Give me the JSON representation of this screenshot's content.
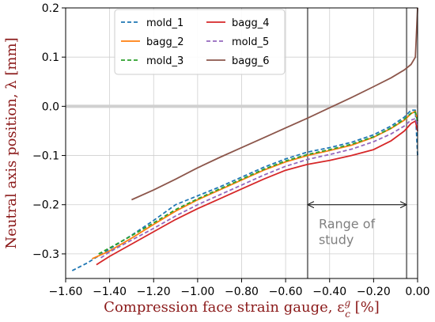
{
  "chart_data": {
    "type": "line",
    "xlabel": "Compression face strain gauge, ε",
    "xlabel_sup": "g",
    "xlabel_sub": "c",
    "xlabel_unit": "[%]",
    "ylabel": "Neutral axis position, λ [mm]",
    "xlim": [
      -1.6,
      0.0
    ],
    "ylim": [
      -0.35,
      0.2
    ],
    "xticks": [
      -1.6,
      -1.4,
      -1.2,
      -1.0,
      -0.8,
      -0.6,
      -0.4,
      -0.2,
      0.0
    ],
    "xtick_labels": [
      "−1.60",
      "−1.40",
      "−1.20",
      "−1.00",
      "−0.80",
      "−0.60",
      "−0.40",
      "−0.20",
      "0.00"
    ],
    "yticks": [
      -0.3,
      -0.2,
      -0.1,
      0.0,
      0.1,
      0.2
    ],
    "ytick_labels": [
      "−0.3",
      "−0.2",
      "−0.1",
      "0.0",
      "0.1",
      "0.2"
    ],
    "grid": true,
    "legend_placement": "top-center, 2 columns",
    "reference_hline": {
      "y": 0.0,
      "color": "#d0d0d0"
    },
    "study_range": {
      "x_start": -0.5,
      "x_end": -0.05,
      "arrow_y": -0.2,
      "label_lines": [
        "Range of",
        "study"
      ],
      "color": "#808080"
    },
    "series": [
      {
        "name": "mold_1",
        "color": "#1f77b4",
        "dashed": true,
        "points": [
          [
            -1.57,
            -0.334
          ],
          [
            -1.5,
            -0.318
          ],
          [
            -1.4,
            -0.29
          ],
          [
            -1.3,
            -0.262
          ],
          [
            -1.2,
            -0.232
          ],
          [
            -1.1,
            -0.2
          ],
          [
            -1.0,
            -0.182
          ],
          [
            -0.9,
            -0.164
          ],
          [
            -0.8,
            -0.144
          ],
          [
            -0.7,
            -0.124
          ],
          [
            -0.6,
            -0.107
          ],
          [
            -0.5,
            -0.093
          ],
          [
            -0.4,
            -0.084
          ],
          [
            -0.3,
            -0.073
          ],
          [
            -0.2,
            -0.058
          ],
          [
            -0.12,
            -0.04
          ],
          [
            -0.06,
            -0.022
          ],
          [
            -0.03,
            -0.008
          ],
          [
            -0.01,
            -0.008
          ],
          [
            0.0,
            -0.1
          ]
        ]
      },
      {
        "name": "bagg_2",
        "color": "#ff7f0e",
        "dashed": false,
        "points": [
          [
            -1.48,
            -0.31
          ],
          [
            -1.4,
            -0.294
          ],
          [
            -1.3,
            -0.268
          ],
          [
            -1.2,
            -0.24
          ],
          [
            -1.1,
            -0.213
          ],
          [
            -1.0,
            -0.19
          ],
          [
            -0.9,
            -0.17
          ],
          [
            -0.8,
            -0.15
          ],
          [
            -0.7,
            -0.13
          ],
          [
            -0.6,
            -0.113
          ],
          [
            -0.5,
            -0.1
          ],
          [
            -0.4,
            -0.09
          ],
          [
            -0.3,
            -0.079
          ],
          [
            -0.2,
            -0.063
          ],
          [
            -0.12,
            -0.045
          ],
          [
            -0.06,
            -0.028
          ],
          [
            -0.03,
            -0.015
          ],
          [
            -0.01,
            -0.01
          ],
          [
            0.0,
            -0.03
          ]
        ]
      },
      {
        "name": "mold_3",
        "color": "#2ca02c",
        "dashed": true,
        "points": [
          [
            -1.45,
            -0.3
          ],
          [
            -1.4,
            -0.288
          ],
          [
            -1.3,
            -0.263
          ],
          [
            -1.2,
            -0.237
          ],
          [
            -1.1,
            -0.21
          ],
          [
            -1.0,
            -0.188
          ],
          [
            -0.9,
            -0.168
          ],
          [
            -0.8,
            -0.148
          ],
          [
            -0.7,
            -0.128
          ],
          [
            -0.6,
            -0.111
          ],
          [
            -0.5,
            -0.098
          ],
          [
            -0.4,
            -0.088
          ],
          [
            -0.3,
            -0.077
          ],
          [
            -0.2,
            -0.062
          ],
          [
            -0.12,
            -0.044
          ],
          [
            -0.06,
            -0.026
          ],
          [
            -0.03,
            -0.014
          ],
          [
            -0.01,
            -0.012
          ],
          [
            0.0,
            -0.03
          ]
        ]
      },
      {
        "name": "bagg_4",
        "color": "#d62728",
        "dashed": false,
        "points": [
          [
            -1.46,
            -0.322
          ],
          [
            -1.4,
            -0.305
          ],
          [
            -1.3,
            -0.28
          ],
          [
            -1.2,
            -0.255
          ],
          [
            -1.1,
            -0.23
          ],
          [
            -1.0,
            -0.208
          ],
          [
            -0.9,
            -0.188
          ],
          [
            -0.8,
            -0.168
          ],
          [
            -0.7,
            -0.148
          ],
          [
            -0.6,
            -0.13
          ],
          [
            -0.5,
            -0.118
          ],
          [
            -0.4,
            -0.11
          ],
          [
            -0.3,
            -0.1
          ],
          [
            -0.2,
            -0.088
          ],
          [
            -0.12,
            -0.07
          ],
          [
            -0.06,
            -0.05
          ],
          [
            -0.03,
            -0.035
          ],
          [
            -0.01,
            -0.03
          ],
          [
            0.0,
            -0.05
          ]
        ]
      },
      {
        "name": "mold_5",
        "color": "#9467bd",
        "dashed": true,
        "points": [
          [
            -1.44,
            -0.308
          ],
          [
            -1.4,
            -0.296
          ],
          [
            -1.3,
            -0.272
          ],
          [
            -1.2,
            -0.248
          ],
          [
            -1.1,
            -0.223
          ],
          [
            -1.0,
            -0.2
          ],
          [
            -0.9,
            -0.18
          ],
          [
            -0.8,
            -0.16
          ],
          [
            -0.7,
            -0.14
          ],
          [
            -0.6,
            -0.122
          ],
          [
            -0.5,
            -0.108
          ],
          [
            -0.4,
            -0.098
          ],
          [
            -0.3,
            -0.087
          ],
          [
            -0.2,
            -0.072
          ],
          [
            -0.12,
            -0.056
          ],
          [
            -0.06,
            -0.04
          ],
          [
            -0.03,
            -0.028
          ],
          [
            -0.01,
            -0.025
          ],
          [
            0.0,
            -0.04
          ]
        ]
      },
      {
        "name": "bagg_6",
        "color": "#8c564b",
        "dashed": false,
        "points": [
          [
            -1.3,
            -0.19
          ],
          [
            -1.2,
            -0.17
          ],
          [
            -1.1,
            -0.148
          ],
          [
            -1.0,
            -0.125
          ],
          [
            -0.9,
            -0.104
          ],
          [
            -0.8,
            -0.084
          ],
          [
            -0.7,
            -0.064
          ],
          [
            -0.6,
            -0.044
          ],
          [
            -0.5,
            -0.024
          ],
          [
            -0.4,
            -0.003
          ],
          [
            -0.3,
            0.018
          ],
          [
            -0.2,
            0.04
          ],
          [
            -0.12,
            0.058
          ],
          [
            -0.06,
            0.074
          ],
          [
            -0.03,
            0.085
          ],
          [
            -0.01,
            0.1
          ],
          [
            0.0,
            0.2
          ]
        ]
      }
    ]
  }
}
